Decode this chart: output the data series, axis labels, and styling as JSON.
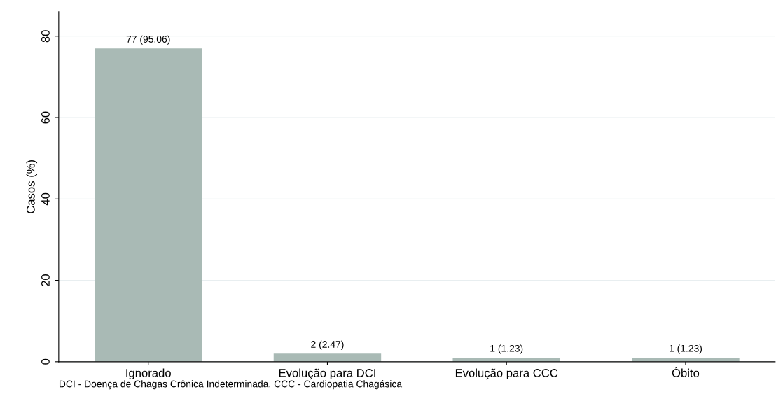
{
  "chart_data": {
    "type": "bar",
    "ylabel": "Casos (%)",
    "categories": [
      "Ignorado",
      "Evolução para DCI",
      "Evolução para CCC",
      "Óbito"
    ],
    "values": [
      77,
      2,
      1,
      1
    ],
    "value_labels": [
      "77 (95.06)",
      "2 (2.47)",
      "1 (1.23)",
      "1 (1.23)"
    ],
    "color": "#a9bab5",
    "ylim": [
      0,
      86
    ],
    "yticks": [
      0,
      20,
      40,
      60,
      80
    ],
    "grid": "y",
    "legend": false,
    "annotations": [
      "DCI - Doença de Chagas Crônica Indeterminada. CCC - Cardiopatia Chagásica"
    ]
  }
}
